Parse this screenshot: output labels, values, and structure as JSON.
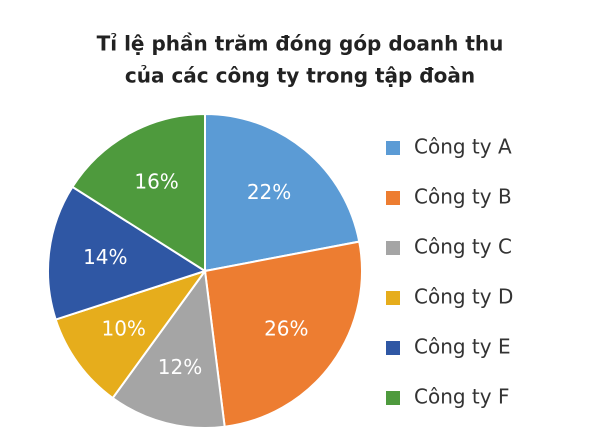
{
  "chart_data": {
    "type": "pie",
    "title": [
      "Tỉ lệ phần trăm đóng góp doanh thu",
      "của các công ty trong tập đoàn"
    ],
    "categories": [
      "Công ty A",
      "Công ty B",
      "Công ty C",
      "Công ty D",
      "Công ty E",
      "Công ty F"
    ],
    "values": [
      22,
      26,
      12,
      10,
      14,
      16
    ],
    "value_labels": [
      "22%",
      "26%",
      "12%",
      "10%",
      "14%",
      "16%"
    ],
    "colors": [
      "#5b9bd5",
      "#ed7d31",
      "#a5a5a5",
      "#e6ad1c",
      "#2f57a4",
      "#4e9a3d"
    ],
    "legend": "right"
  }
}
